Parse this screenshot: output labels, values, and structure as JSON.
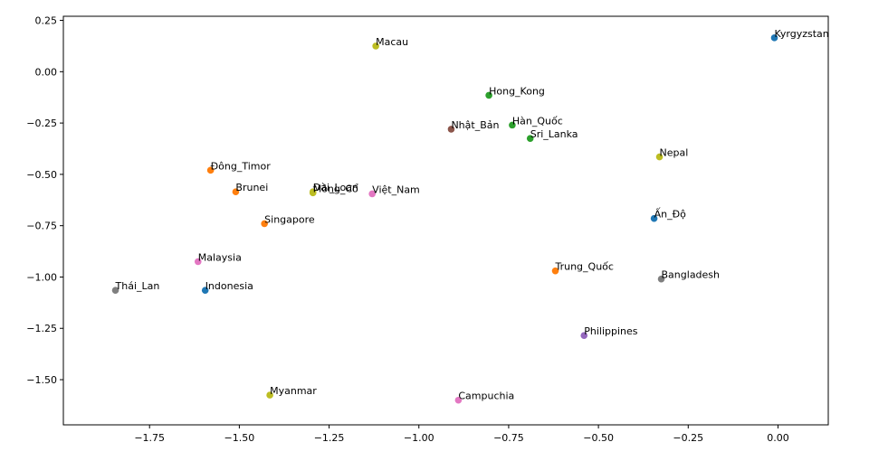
{
  "chart_data": {
    "type": "scatter",
    "title": "",
    "xlabel": "",
    "ylabel": "",
    "xlim": [
      -1.99,
      0.14
    ],
    "ylim": [
      -1.72,
      0.27
    ],
    "xticks": [
      -1.75,
      -1.5,
      -1.25,
      -1.0,
      -0.75,
      -0.5,
      -0.25,
      0.0
    ],
    "xtick_labels": [
      "−1.75",
      "−1.50",
      "−1.25",
      "−1.00",
      "−0.75",
      "−0.50",
      "−0.25",
      "0.00"
    ],
    "yticks": [
      0.25,
      0.0,
      -0.25,
      -0.5,
      -0.75,
      -1.0,
      -1.25,
      -1.5
    ],
    "ytick_labels": [
      "0.25",
      "0.00",
      "−0.25",
      "−0.50",
      "−0.75",
      "−1.00",
      "−1.25",
      "−1.50"
    ],
    "grid": false,
    "points": [
      {
        "label": "Kyrgyzstan",
        "x": -0.01,
        "y": 0.165,
        "color": "#1f77b4"
      },
      {
        "label": "Macau",
        "x": -1.12,
        "y": 0.125,
        "color": "#bcbd22"
      },
      {
        "label": "Hong_Kong",
        "x": -0.805,
        "y": -0.115,
        "color": "#2ca02c"
      },
      {
        "label": "Hàn_Quốc",
        "x": -0.74,
        "y": -0.26,
        "color": "#2ca02c"
      },
      {
        "label": "Nhật_Bản",
        "x": -0.91,
        "y": -0.28,
        "color": "#8c564b"
      },
      {
        "label": "Sri_Lanka",
        "x": -0.69,
        "y": -0.325,
        "color": "#2ca02c"
      },
      {
        "label": "Nepal",
        "x": -0.33,
        "y": -0.415,
        "color": "#bcbd22"
      },
      {
        "label": "Đông_Timor",
        "x": -1.58,
        "y": -0.48,
        "color": "#ff7f0e"
      },
      {
        "label": "Brunei",
        "x": -1.51,
        "y": -0.585,
        "color": "#ff7f0e"
      },
      {
        "label": "Đài_Loan",
        "x": -1.295,
        "y": -0.585,
        "color": "#bcbd22"
      },
      {
        "label": "Mông_Cổ",
        "x": -1.295,
        "y": -0.59,
        "color": "#bcbd22"
      },
      {
        "label": "Việt_Nam",
        "x": -1.13,
        "y": -0.595,
        "color": "#e377c2"
      },
      {
        "label": "Ấn_Độ",
        "x": -0.345,
        "y": -0.715,
        "color": "#1f77b4"
      },
      {
        "label": "Singapore",
        "x": -1.43,
        "y": -0.74,
        "color": "#ff7f0e"
      },
      {
        "label": "Malaysia",
        "x": -1.615,
        "y": -0.925,
        "color": "#e377c2"
      },
      {
        "label": "Trung_Quốc",
        "x": -0.62,
        "y": -0.97,
        "color": "#ff7f0e"
      },
      {
        "label": "Bangladesh",
        "x": -0.325,
        "y": -1.01,
        "color": "#7f7f7f"
      },
      {
        "label": "Thái_Lan",
        "x": -1.845,
        "y": -1.065,
        "color": "#7f7f7f"
      },
      {
        "label": "Indonesia",
        "x": -1.595,
        "y": -1.065,
        "color": "#1f77b4"
      },
      {
        "label": "Philippines",
        "x": -0.54,
        "y": -1.285,
        "color": "#9467bd"
      },
      {
        "label": "Myanmar",
        "x": -1.415,
        "y": -1.575,
        "color": "#bcbd22"
      },
      {
        "label": "Campuchia",
        "x": -0.89,
        "y": -1.6,
        "color": "#e377c2"
      }
    ]
  }
}
